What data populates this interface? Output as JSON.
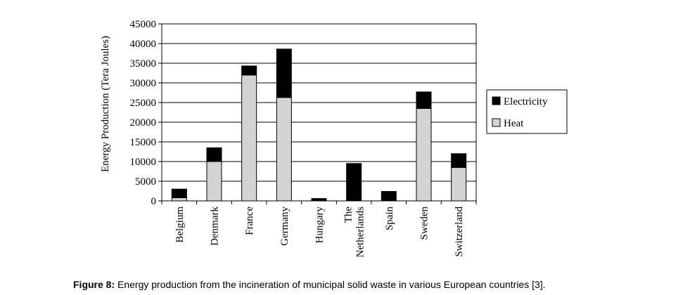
{
  "caption": {
    "label": "Figure 8:",
    "text": "Energy production from the incineration of municipal solid waste in various European countries [3]."
  },
  "chart_data": {
    "type": "bar",
    "stacked": true,
    "categories": [
      "Belgium",
      "Denmark",
      "France",
      "Germany",
      "Hungary",
      "The Netherlands",
      "Spain",
      "Sweden",
      "Switzerland"
    ],
    "series": [
      {
        "name": "Heat",
        "color": "#d3d3d3",
        "values": [
          800,
          10000,
          32000,
          26300,
          0,
          0,
          0,
          23500,
          8500
        ]
      },
      {
        "name": "Electricity",
        "color": "#000000",
        "values": [
          2200,
          3500,
          2300,
          12300,
          600,
          9500,
          2400,
          4200,
          3500
        ]
      }
    ],
    "ylabel": "Energy Production (Tera Joules)",
    "xlabel": "",
    "ylim": [
      0,
      45000
    ],
    "yticks": [
      "0",
      "5000",
      "10000",
      "15000",
      "20000",
      "25000",
      "30000",
      "35000",
      "40000",
      "45000"
    ],
    "grid": true,
    "legend": {
      "position": "right",
      "entries": [
        "Electricity",
        "Heat"
      ]
    }
  }
}
